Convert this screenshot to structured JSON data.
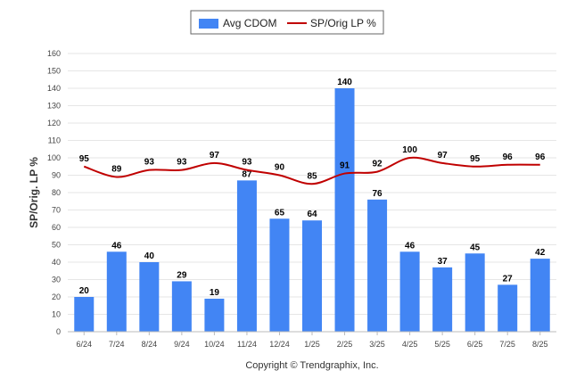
{
  "chart_data": {
    "type": "bar",
    "categories": [
      "6/24",
      "7/24",
      "8/24",
      "9/24",
      "10/24",
      "11/24",
      "12/24",
      "1/25",
      "2/25",
      "3/25",
      "4/25",
      "5/25",
      "6/25",
      "7/25",
      "8/25"
    ],
    "series": [
      {
        "name": "Avg CDOM",
        "type": "bar",
        "color": "#4285F4",
        "values": [
          20,
          46,
          40,
          29,
          19,
          87,
          65,
          64,
          140,
          76,
          46,
          37,
          45,
          27,
          42
        ]
      },
      {
        "name": "SP/Orig LP %",
        "type": "line",
        "color": "#C00000",
        "values": [
          95,
          89,
          93,
          93,
          97,
          93,
          90,
          85,
          91,
          92,
          100,
          97,
          95,
          96,
          96
        ]
      }
    ],
    "ylabel": "SP/Orig. LP %",
    "yticks": [
      0,
      10,
      20,
      30,
      40,
      50,
      60,
      70,
      80,
      90,
      100,
      110,
      120,
      130,
      140,
      150,
      160
    ],
    "ylim": [
      0,
      160
    ],
    "grid": true,
    "legend_position": "top-center"
  },
  "footer": {
    "copyright": "Copyright © Trendgraphix, Inc."
  }
}
